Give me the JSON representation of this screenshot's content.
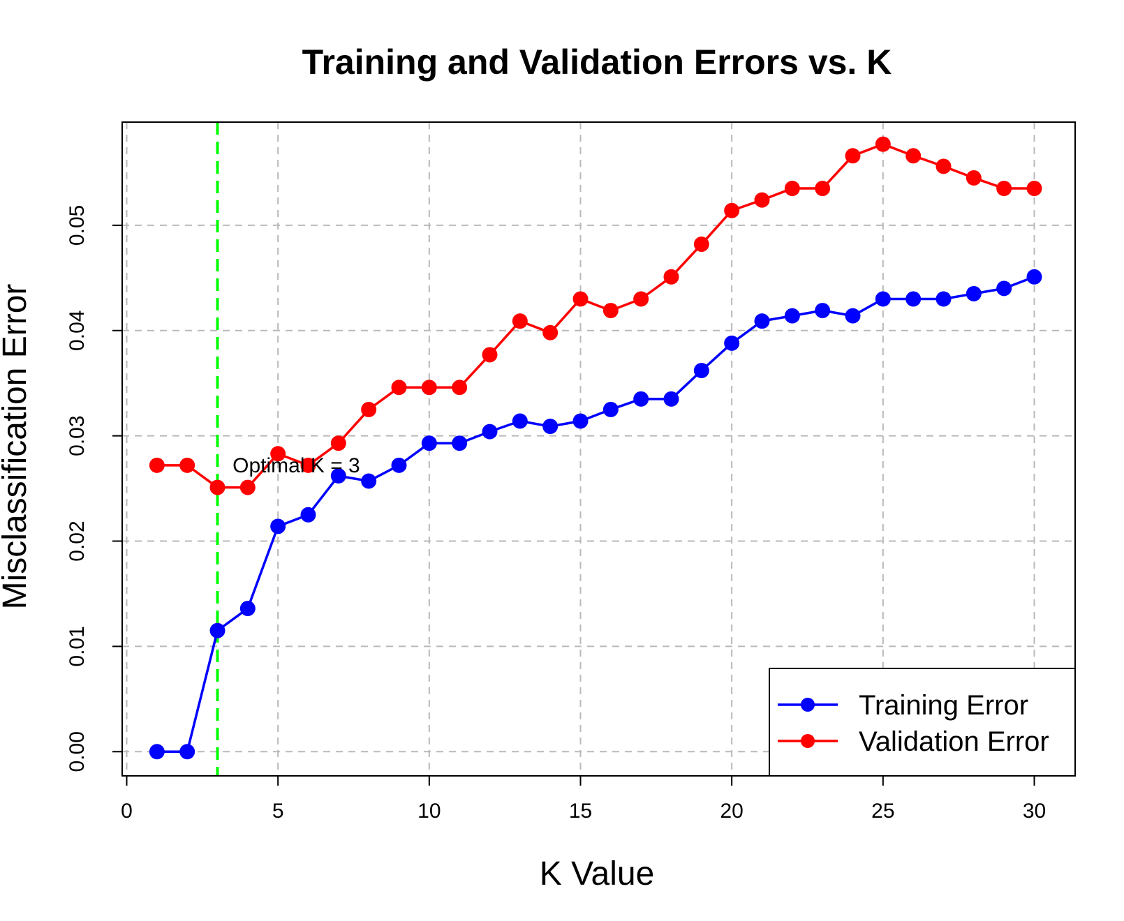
{
  "chart_data": {
    "type": "line",
    "title": "Training and Validation Errors vs. K",
    "xlabel": "K Value",
    "ylabel": "Misclassification Error",
    "xlim": [
      0,
      30
    ],
    "ylim": [
      -0.0023,
      0.0598
    ],
    "x_ticks": [
      0,
      5,
      10,
      15,
      20,
      25,
      30
    ],
    "x_tick_labels": [
      "0",
      "5",
      "10",
      "15",
      "20",
      "25",
      "30"
    ],
    "y_ticks": [
      0.0,
      0.01,
      0.02,
      0.03,
      0.04,
      0.05
    ],
    "y_tick_labels": [
      "0.00",
      "0.01",
      "0.02",
      "0.03",
      "0.04",
      "0.05"
    ],
    "grid": true,
    "legend_position": "bottom-right",
    "x": [
      1,
      2,
      3,
      4,
      5,
      6,
      7,
      8,
      9,
      10,
      11,
      12,
      13,
      14,
      15,
      16,
      17,
      18,
      19,
      20,
      21,
      22,
      23,
      24,
      25,
      26,
      27,
      28,
      29,
      30
    ],
    "series": [
      {
        "name": "Training Error",
        "color": "#0000ff",
        "values": [
          0.0,
          0.0,
          0.0115,
          0.0136,
          0.0214,
          0.0225,
          0.0262,
          0.0257,
          0.0272,
          0.0293,
          0.0293,
          0.0304,
          0.0314,
          0.0309,
          0.0314,
          0.0325,
          0.0335,
          0.0335,
          0.0362,
          0.0388,
          0.0409,
          0.0414,
          0.0419,
          0.0414,
          0.043,
          0.043,
          0.043,
          0.0435,
          0.044,
          0.0451
        ]
      },
      {
        "name": "Validation Error",
        "color": "#ff0000",
        "values": [
          0.0272,
          0.0272,
          0.0251,
          0.0251,
          0.0283,
          0.0272,
          0.0293,
          0.0325,
          0.0346,
          0.0346,
          0.0346,
          0.0377,
          0.0409,
          0.0398,
          0.043,
          0.0419,
          0.043,
          0.0451,
          0.0482,
          0.0514,
          0.0524,
          0.0535,
          0.0535,
          0.0566,
          0.0577,
          0.0566,
          0.0556,
          0.0545,
          0.0535,
          0.0535
        ]
      }
    ],
    "vline": {
      "x": 3,
      "color": "#00ff00"
    },
    "annotation": {
      "text": "Optimal K = 3",
      "x": 3.5,
      "y": 0.0272
    }
  }
}
